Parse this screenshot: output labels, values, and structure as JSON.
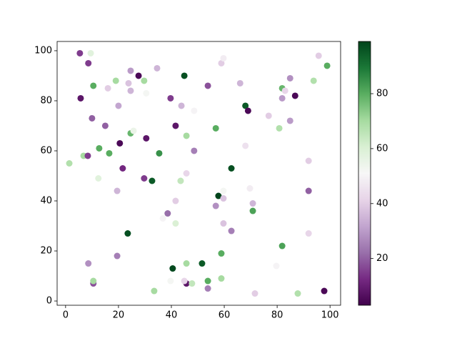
{
  "chart_data": {
    "type": "scatter",
    "x": [
      5.4,
      9.5,
      8.6,
      5.7,
      10,
      10.5,
      15,
      19,
      16,
      20,
      23.8,
      24.6,
      27.6,
      29.7,
      24.6,
      30.5,
      34.6,
      20.5,
      24.6,
      25.7,
      30.5,
      35.4,
      12.7,
      16.5,
      6.8,
      8.4,
      1.4,
      21.6,
      12.4,
      19.5,
      29.7,
      32.7,
      23.5,
      38.6,
      36.8,
      41.6,
      41.6,
      43.5,
      45.7,
      39.7,
      43.8,
      41.6,
      44.9,
      48.6,
      45.7,
      48.6,
      53.8,
      58.9,
      59.7,
      56.8,
      66,
      68,
      69,
      62.7,
      57.8,
      59.7,
      59.7,
      56.8,
      68,
      69.7,
      70.8,
      70.8,
      59.7,
      62.7,
      76.8,
      80.8,
      81.9,
      83,
      81.9,
      84.9,
      86.8,
      84.9,
      93.8,
      95.7,
      98.9,
      91.9,
      91.9,
      91.9,
      87.8,
      97.8,
      81.9,
      79.7,
      71.6,
      58.9,
      58.9,
      53.8,
      53.8,
      51.6,
      45.7,
      45.7,
      47.8,
      44.9,
      40.5,
      39.7,
      33.5,
      19.5,
      8.6,
      10.5,
      10.5
    ],
    "values": [
      99,
      99,
      95,
      81,
      73,
      86,
      70,
      88,
      85,
      78,
      87,
      92,
      90,
      88,
      84,
      83,
      93,
      63,
      67,
      68,
      65,
      59,
      61,
      59,
      58,
      58,
      55,
      53,
      49,
      44,
      49,
      48,
      27,
      35,
      33,
      31,
      40,
      48,
      51,
      81,
      78,
      70,
      90,
      76,
      66,
      60,
      86,
      95,
      97,
      69,
      87,
      78,
      76,
      53,
      42,
      44,
      41,
      38,
      62,
      45,
      39,
      36,
      31,
      28,
      74,
      69,
      85,
      84,
      81,
      89,
      82,
      72,
      88,
      98,
      94,
      56,
      44,
      27,
      3,
      4,
      22,
      14,
      3,
      19,
      9,
      8,
      5,
      15,
      15,
      7,
      7,
      8,
      13,
      8,
      4,
      18,
      15,
      7,
      8
    ],
    "c": [
      15,
      58,
      15,
      8,
      20,
      80,
      20,
      70,
      40,
      32,
      38,
      30,
      5,
      70,
      35,
      52,
      35,
      5,
      78,
      55,
      8,
      85,
      80,
      80,
      70,
      15,
      68,
      12,
      58,
      35,
      15,
      95,
      97,
      22,
      50,
      60,
      40,
      65,
      42,
      15,
      35,
      8,
      97,
      50,
      70,
      25,
      18,
      40,
      48,
      80,
      35,
      95,
      5,
      97,
      99,
      52,
      38,
      28,
      45,
      48,
      35,
      82,
      38,
      25,
      40,
      68,
      78,
      42,
      30,
      28,
      5,
      30,
      68,
      40,
      80,
      40,
      20,
      42,
      68,
      5,
      82,
      50,
      40,
      80,
      70,
      80,
      25,
      95,
      70,
      8,
      65,
      42,
      98,
      52,
      70,
      25,
      28,
      18,
      70
    ],
    "colormap": "PRGn",
    "xlim": [
      -3.2,
      104
    ],
    "xticks": [
      0,
      20,
      40,
      60,
      80,
      100
    ],
    "ylim": [
      -1.7,
      103.7
    ],
    "yticks": [
      0,
      20,
      40,
      60,
      80,
      100
    ],
    "clim": [
      3,
      99
    ],
    "cticks": [
      20,
      40,
      60,
      80
    ]
  }
}
